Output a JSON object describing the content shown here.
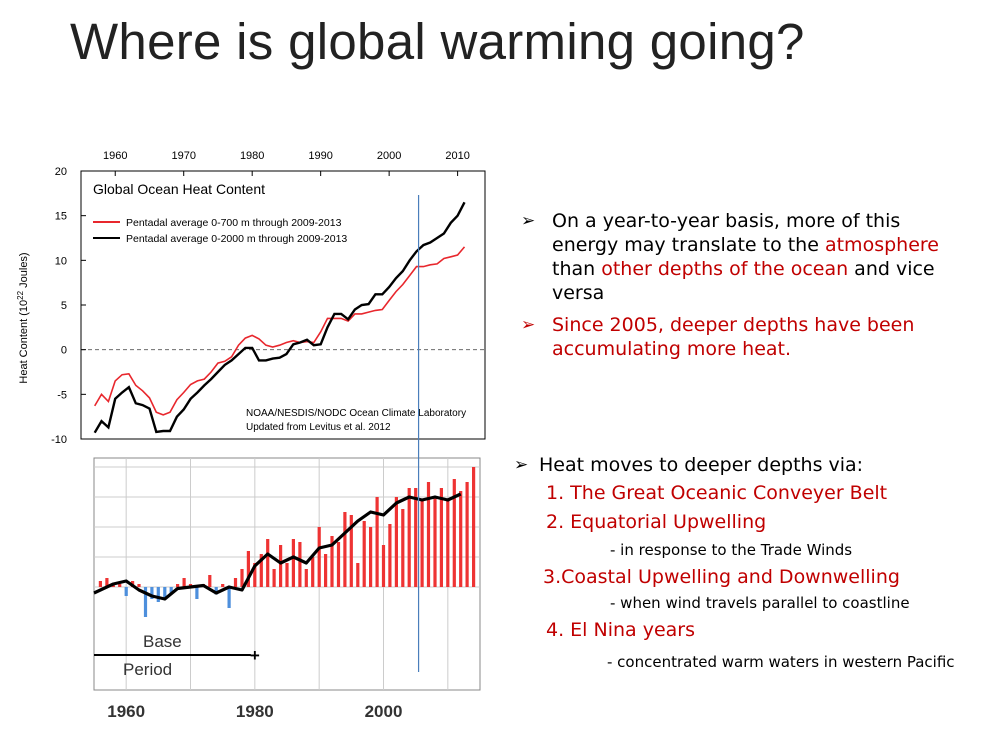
{
  "slide": {
    "title": "Where is global warming going?",
    "bullets_top": [
      {
        "parts": [
          {
            "text": "On a year-to-year basis, more of this energy may translate to the ",
            "color": "#000000"
          },
          {
            "text": "atmosphere",
            "color": "#c00000"
          },
          {
            "text": " than ",
            "color": "#000000"
          },
          {
            "text": "other depths of the ocean",
            "color": "#c00000"
          },
          {
            "text": " and vice versa",
            "color": "#000000"
          }
        ]
      },
      {
        "parts": [
          {
            "text": "Since 2005, deeper depths have been accumulating more heat.",
            "color": "#c00000"
          }
        ]
      }
    ],
    "mechanism_heading": "Heat moves to deeper depths via:",
    "mechanisms": [
      {
        "label": "1. The Great Oceanic Conveyer Belt",
        "note": ""
      },
      {
        "label": "2. Equatorial Upwelling",
        "note": "- in response to the Trade Winds"
      },
      {
        "label": "3.Coastal Upwelling and Downwelling",
        "note": "- when wind travels parallel to coastline"
      },
      {
        "label": "4. El Nina years",
        "note": "- concentrated warm waters in western Pacific"
      }
    ],
    "colors": {
      "red": "#c00000",
      "accent_line": "#4a7ebb",
      "bar_red": "#ee3333",
      "bar_blue": "#4d8fdc"
    }
  },
  "chart_data": [
    {
      "type": "line",
      "title": "Global Ocean Heat Content",
      "ylabel": "Heat Content (10",
      "ylabel_sup": "22",
      "ylabel_tail": " Joules)",
      "xlim": [
        1955,
        2014
      ],
      "ylim": [
        -10,
        20
      ],
      "xticks": [
        "1960",
        "1970",
        "1980",
        "1990",
        "2000",
        "2010"
      ],
      "yticks": [
        "20",
        "15",
        "10",
        "5",
        "0",
        "-5",
        "-10"
      ],
      "grid": false,
      "legend_position": "top-left",
      "series": [
        {
          "name": "Pentadal average 0-700 m through 2009-2013",
          "color": "#e8272d",
          "x": [
            1957,
            1958,
            1959,
            1960,
            1961,
            1962,
            1963,
            1964,
            1965,
            1966,
            1967,
            1968,
            1969,
            1970,
            1971,
            1972,
            1973,
            1974,
            1975,
            1976,
            1977,
            1978,
            1979,
            1980,
            1981,
            1982,
            1983,
            1984,
            1985,
            1986,
            1987,
            1988,
            1989,
            1990,
            1991,
            1992,
            1993,
            1994,
            1995,
            1996,
            1997,
            1998,
            1999,
            2000,
            2001,
            2002,
            2003,
            2004,
            2005,
            2006,
            2007,
            2008,
            2009,
            2010,
            2011
          ],
          "values": [
            -6.3,
            -5,
            -5.8,
            -3.5,
            -2.8,
            -2.7,
            -4,
            -4.6,
            -5.4,
            -7,
            -7.3,
            -7,
            -5.6,
            -4.8,
            -3.9,
            -3.5,
            -3.3,
            -2.5,
            -1.5,
            -1.3,
            -0.8,
            0.5,
            1.3,
            1.6,
            1.2,
            0.5,
            0.3,
            0.5,
            0.8,
            1,
            0.8,
            0.9,
            0.8,
            2,
            3.5,
            3.5,
            3.5,
            3.2,
            4,
            4,
            4.2,
            4.4,
            4.5,
            5.5,
            6.5,
            7.3,
            8.3,
            9.3,
            9.3,
            9.5,
            9.6,
            10.2,
            10.4,
            10.6,
            11.5
          ]
        },
        {
          "name": "Pentadal average 0-2000 m through 2009-2013",
          "color": "#000000",
          "x": [
            1957,
            1958,
            1959,
            1960,
            1961,
            1962,
            1963,
            1964,
            1965,
            1966,
            1967,
            1968,
            1969,
            1970,
            1971,
            1972,
            1973,
            1974,
            1975,
            1976,
            1977,
            1978,
            1979,
            1980,
            1981,
            1982,
            1983,
            1984,
            1985,
            1986,
            1987,
            1988,
            1989,
            1990,
            1991,
            1992,
            1993,
            1994,
            1995,
            1996,
            1997,
            1998,
            1999,
            2000,
            2001,
            2002,
            2003,
            2004,
            2005,
            2006,
            2007,
            2008,
            2009,
            2010,
            2011
          ],
          "values": [
            -9.3,
            -8,
            -8.7,
            -5.5,
            -4.8,
            -4.2,
            -6,
            -6.2,
            -6.6,
            -9.2,
            -9.1,
            -9.1,
            -7.5,
            -6.7,
            -5.5,
            -4.8,
            -4,
            -3.3,
            -2.5,
            -1.7,
            -1.2,
            -0.5,
            0.2,
            0.2,
            -1.2,
            -1.2,
            -1,
            -0.9,
            -0.5,
            0.6,
            0.8,
            1.1,
            0.5,
            0.6,
            2.5,
            4,
            4,
            3.4,
            4.5,
            5,
            5.1,
            6.2,
            6.2,
            7,
            8,
            8.8,
            10,
            11,
            11.7,
            12,
            12.5,
            13,
            14.2,
            15,
            16.5
          ]
        }
      ],
      "annotations": [
        "NOAA/NESDIS/NODC Ocean Climate Laboratory",
        "Updated from Levitus et al. 2012"
      ]
    },
    {
      "type": "bar",
      "xlim": [
        1955,
        2015
      ],
      "xticks": [
        "1960",
        "1980",
        "2000"
      ],
      "ylim": [
        -1,
        4
      ],
      "grid": true,
      "bar_series": {
        "x": [
          1956,
          1957,
          1958,
          1959,
          1960,
          1961,
          1962,
          1963,
          1964,
          1965,
          1966,
          1967,
          1968,
          1969,
          1970,
          1971,
          1972,
          1973,
          1974,
          1975,
          1976,
          1977,
          1978,
          1979,
          1980,
          1981,
          1982,
          1983,
          1984,
          1985,
          1986,
          1987,
          1988,
          1989,
          1990,
          1991,
          1992,
          1993,
          1994,
          1995,
          1996,
          1997,
          1998,
          1999,
          2000,
          2001,
          2002,
          2003,
          2004,
          2005,
          2006,
          2007,
          2008,
          2009,
          2010,
          2011,
          2012,
          2013,
          2014
        ],
        "values": [
          0.2,
          0.3,
          0.1,
          0.1,
          -0.3,
          0.2,
          0.1,
          -1,
          -0.4,
          -0.5,
          -0.35,
          -0.2,
          0.1,
          0.3,
          0.1,
          -0.4,
          0.1,
          0.4,
          -0.25,
          0.1,
          -0.7,
          0.3,
          0.6,
          1.2,
          0.8,
          1.1,
          1.6,
          0.6,
          1.4,
          0.8,
          1.6,
          1.5,
          0.6,
          1.0,
          2.0,
          1.1,
          1.7,
          1.5,
          2.5,
          2.4,
          0.8,
          2.2,
          2.0,
          3.0,
          1.4,
          2.1,
          3.0,
          2.6,
          3.3,
          3.3,
          2.9,
          3.5,
          3.0,
          3.3,
          2.9,
          3.6,
          3.2,
          3.5,
          4.0
        ]
      },
      "line_series": {
        "x": [
          1955,
          1958,
          1960,
          1962,
          1964,
          1966,
          1968,
          1970,
          1972,
          1974,
          1976,
          1978,
          1980,
          1982,
          1984,
          1986,
          1988,
          1990,
          1992,
          1994,
          1996,
          1998,
          2000,
          2002,
          2004,
          2006,
          2008,
          2010,
          2012
        ],
        "values": [
          -0.2,
          0.1,
          0.2,
          -0.1,
          -0.3,
          -0.4,
          -0.05,
          0.0,
          0.05,
          -0.2,
          0.0,
          -0.1,
          0.7,
          1.1,
          0.8,
          1.0,
          0.8,
          1.3,
          1.4,
          1.8,
          2.2,
          2.5,
          2.4,
          2.8,
          3.0,
          2.9,
          3.0,
          2.9,
          3.1
        ]
      },
      "base_period_label": [
        "Base",
        "Period"
      ],
      "base_period_range": [
        1955,
        1980
      ]
    }
  ]
}
